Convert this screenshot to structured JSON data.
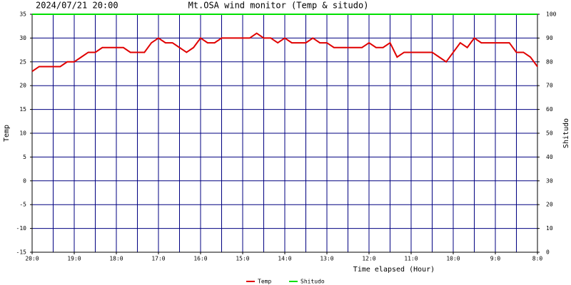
{
  "chart_data": {
    "type": "line",
    "title": "Mt.OSA wind monitor (Temp & situdo)",
    "subtitle": "2024/07/21 20:00",
    "xlabel": "Time elapsed (Hour)",
    "ylabel": "Temp",
    "y2label": "Shitudo",
    "x": [
      20,
      19.833,
      19.667,
      19.5,
      19.333,
      19.167,
      19,
      18.833,
      18.667,
      18.5,
      18.333,
      18.167,
      18,
      17.833,
      17.667,
      17.5,
      17.333,
      17.167,
      17,
      16.833,
      16.667,
      16.5,
      16.333,
      16.167,
      16,
      15.833,
      15.667,
      15.5,
      15.333,
      15.167,
      15,
      14.833,
      14.667,
      14.5,
      14.333,
      14.167,
      14,
      13.833,
      13.667,
      13.5,
      13.333,
      13.167,
      13,
      12.833,
      12.667,
      12.5,
      12.333,
      12.167,
      12,
      11.833,
      11.667,
      11.5,
      11.333,
      11.167,
      11,
      10.833,
      10.667,
      10.5,
      10.333,
      10.167,
      10,
      9.833,
      9.667,
      9.5,
      9.333,
      9.167,
      9,
      8.833,
      8.667,
      8.5,
      8.333,
      8.167,
      8
    ],
    "series": [
      {
        "name": "Temp",
        "color": "#e00000",
        "axis": "y",
        "values": [
          23,
          24,
          24,
          24,
          24,
          25,
          25,
          26,
          27,
          27,
          28,
          28,
          28,
          28,
          27,
          27,
          27,
          29,
          30,
          29,
          29,
          28,
          27,
          28,
          30,
          29,
          29,
          30,
          30,
          30,
          30,
          30,
          31,
          30,
          30,
          29,
          30,
          29,
          29,
          29,
          30,
          29,
          29,
          28,
          28,
          28,
          28,
          28,
          29,
          28,
          28,
          29,
          26,
          27,
          27,
          27,
          27,
          27,
          26,
          25,
          27,
          29,
          28,
          30,
          29,
          29,
          29,
          29,
          29,
          27,
          27,
          26,
          24
        ]
      },
      {
        "name": "Shitudo",
        "color": "#00e000",
        "axis": "y2",
        "values": [
          100,
          100,
          100,
          100,
          100,
          100,
          100,
          100,
          100,
          100,
          100,
          100,
          100,
          100,
          100,
          100,
          100,
          100,
          100,
          100,
          100,
          100,
          100,
          100,
          100,
          100,
          100,
          100,
          100,
          100,
          100,
          100,
          100,
          100,
          100,
          100,
          100,
          100,
          100,
          100,
          100,
          100,
          100,
          100,
          100,
          100,
          100,
          100,
          100,
          100,
          100,
          100,
          100,
          100,
          100,
          100,
          100,
          100,
          100,
          100,
          100,
          100,
          100,
          100,
          100,
          100,
          100,
          100,
          100,
          100,
          100,
          100,
          100
        ]
      }
    ],
    "xlim": [
      20,
      8
    ],
    "xticks": [
      {
        "value": 20,
        "label": "20:0"
      },
      {
        "value": 19,
        "label": "19:0"
      },
      {
        "value": 18,
        "label": "18:0"
      },
      {
        "value": 17,
        "label": "17:0"
      },
      {
        "value": 16,
        "label": "16:0"
      },
      {
        "value": 15,
        "label": "15:0"
      },
      {
        "value": 14,
        "label": "14:0"
      },
      {
        "value": 13,
        "label": "13:0"
      },
      {
        "value": 12,
        "label": "12:0"
      },
      {
        "value": 11,
        "label": "11:0"
      },
      {
        "value": 10,
        "label": "10:0"
      },
      {
        "value": 9,
        "label": "9:0"
      },
      {
        "value": 8,
        "label": "8:0"
      }
    ],
    "xminor": [
      19.5,
      18.5,
      17.5,
      16.5,
      15.5,
      14.5,
      13.5,
      12.5,
      11.5,
      10.5,
      9.5,
      8.5
    ],
    "ylim": [
      -15,
      35
    ],
    "yticks": [
      -15,
      -10,
      -5,
      0,
      5,
      10,
      15,
      20,
      25,
      30,
      35
    ],
    "y2lim": [
      0,
      100
    ],
    "y2ticks": [
      0,
      10,
      20,
      30,
      40,
      50,
      60,
      70,
      80,
      90,
      100
    ],
    "grid": true,
    "grid_color": "#000080",
    "legend": "bottom"
  }
}
